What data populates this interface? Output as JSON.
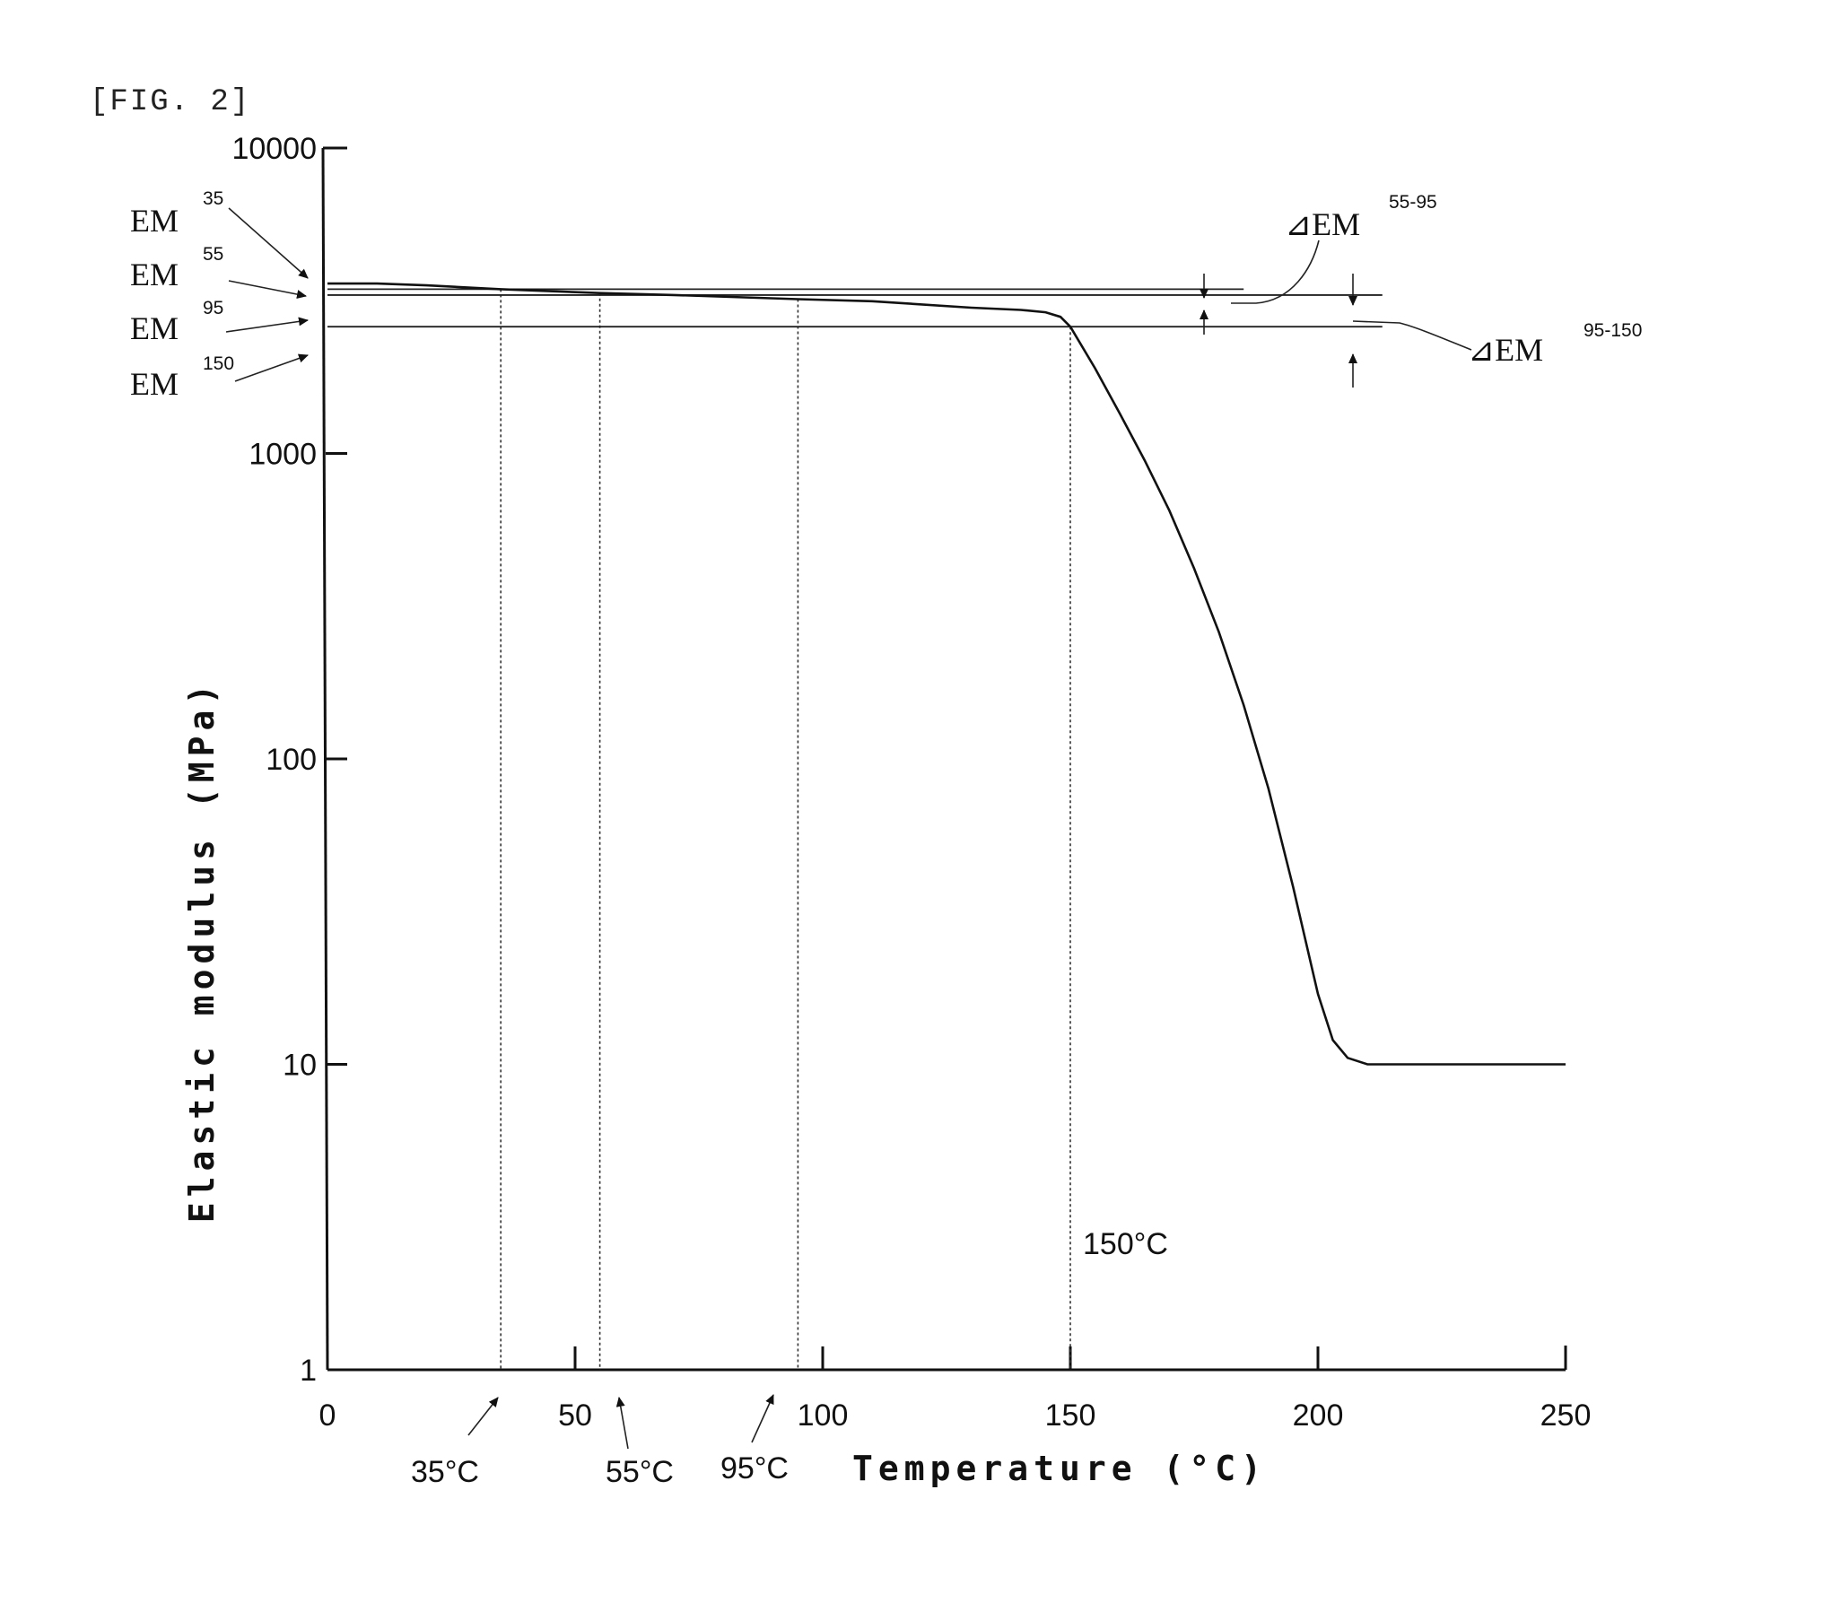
{
  "figure_label": "[FIG. 2]",
  "chart_data": {
    "type": "line",
    "title": "",
    "xlabel": "Temperature (°C)",
    "ylabel": "Elastic modulus (MPa)",
    "xlim": [
      0,
      250
    ],
    "ylim": [
      1,
      10000
    ],
    "yscale": "log",
    "grid": false,
    "x_ticks": [
      0,
      50,
      100,
      150,
      200,
      250
    ],
    "x_tick_labels": [
      "0",
      "50",
      "100",
      "150",
      "200",
      "250"
    ],
    "y_ticks": [
      1,
      10,
      100,
      1000,
      10000
    ],
    "y_tick_labels": [
      "1",
      "10",
      "100",
      "1000",
      "10000"
    ],
    "series": [
      {
        "x": [
          0,
          10,
          20,
          35,
          55,
          70,
          95,
          110,
          130,
          140,
          145,
          148,
          150,
          155,
          160,
          165,
          170,
          175,
          180,
          185,
          190,
          195,
          200,
          203,
          206,
          210,
          215,
          220,
          230,
          240,
          250
        ],
        "y": [
          3600,
          3600,
          3550,
          3450,
          3350,
          3300,
          3200,
          3150,
          3000,
          2950,
          2900,
          2800,
          2600,
          1900,
          1350,
          950,
          650,
          420,
          260,
          150,
          80,
          38,
          17,
          12,
          10.5,
          10,
          10,
          10,
          10,
          10,
          10
        ]
      }
    ],
    "reference_temperatures": [
      35,
      55,
      95,
      150
    ],
    "reference_levels": {
      "EM35": 3600,
      "EM55": 3450,
      "EM95": 3300,
      "EM150": 2600
    },
    "annotations": {
      "em35": {
        "base": "EM",
        "sup": "35"
      },
      "em55": {
        "base": "EM",
        "sup": "55"
      },
      "em95": {
        "base": "EM",
        "sup": "95"
      },
      "em150": {
        "base": "EM",
        "sup": "150"
      },
      "delta_55_95": {
        "base": "⊿EM",
        "sup": "55-95"
      },
      "delta_95_150": {
        "base": "⊿EM",
        "sup": "95-150"
      },
      "t35": "35°C",
      "t55": "55°C",
      "t95": "95°C",
      "t150": "150°C"
    }
  }
}
